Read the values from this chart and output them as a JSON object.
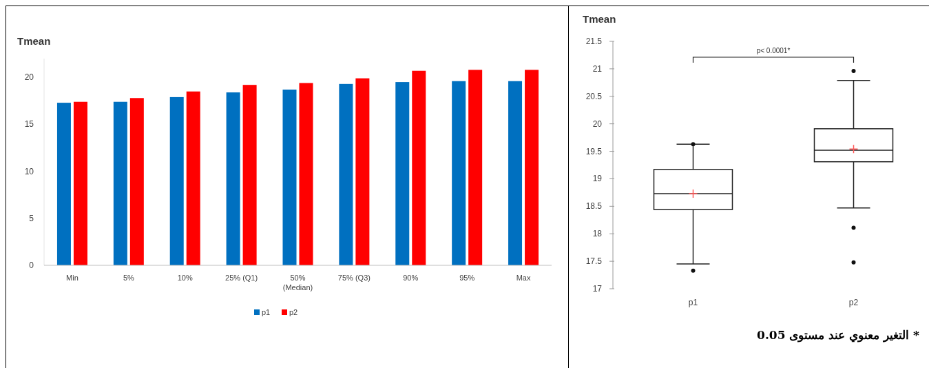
{
  "chart_data": [
    {
      "type": "bar",
      "ylabel": "Tmean",
      "categories": [
        "Min",
        "5%",
        "10%",
        "25% (Q1)",
        "50% (Median)",
        "75% (Q3)",
        "90%",
        "95%",
        "Max"
      ],
      "series": [
        {
          "name": "p1",
          "color": "#0070c0",
          "values": [
            17.3,
            17.4,
            17.9,
            18.4,
            18.7,
            19.3,
            19.5,
            19.6,
            19.6
          ]
        },
        {
          "name": "p2",
          "color": "#ff0000",
          "values": [
            17.4,
            17.8,
            18.5,
            19.2,
            19.4,
            19.9,
            20.7,
            20.8,
            20.8
          ]
        }
      ],
      "ylim": [
        0,
        22
      ],
      "yticks": [
        0,
        5,
        10,
        15,
        20
      ],
      "legend": "bottom"
    },
    {
      "type": "box",
      "ylabel": "Tmean",
      "categories": [
        "p1",
        "p2"
      ],
      "boxes": [
        {
          "low": 17.45,
          "q1": 18.44,
          "median": 18.73,
          "q3": 19.17,
          "high": 19.63,
          "mean": 18.73,
          "outliers": [
            17.33,
            19.63
          ]
        },
        {
          "low": 18.47,
          "q1": 19.31,
          "median": 19.52,
          "q3": 19.91,
          "high": 20.79,
          "mean": 19.54,
          "outliers": [
            20.96,
            18.11,
            17.48
          ]
        }
      ],
      "ylim": [
        17,
        21.5
      ],
      "yticks": [
        17,
        17.5,
        18,
        18.5,
        19,
        19.5,
        20,
        20.5,
        21,
        21.5
      ],
      "annotations": [
        "p< 0.0001*",
        "* التغير معنوي عند مستوى 0.05"
      ]
    }
  ]
}
